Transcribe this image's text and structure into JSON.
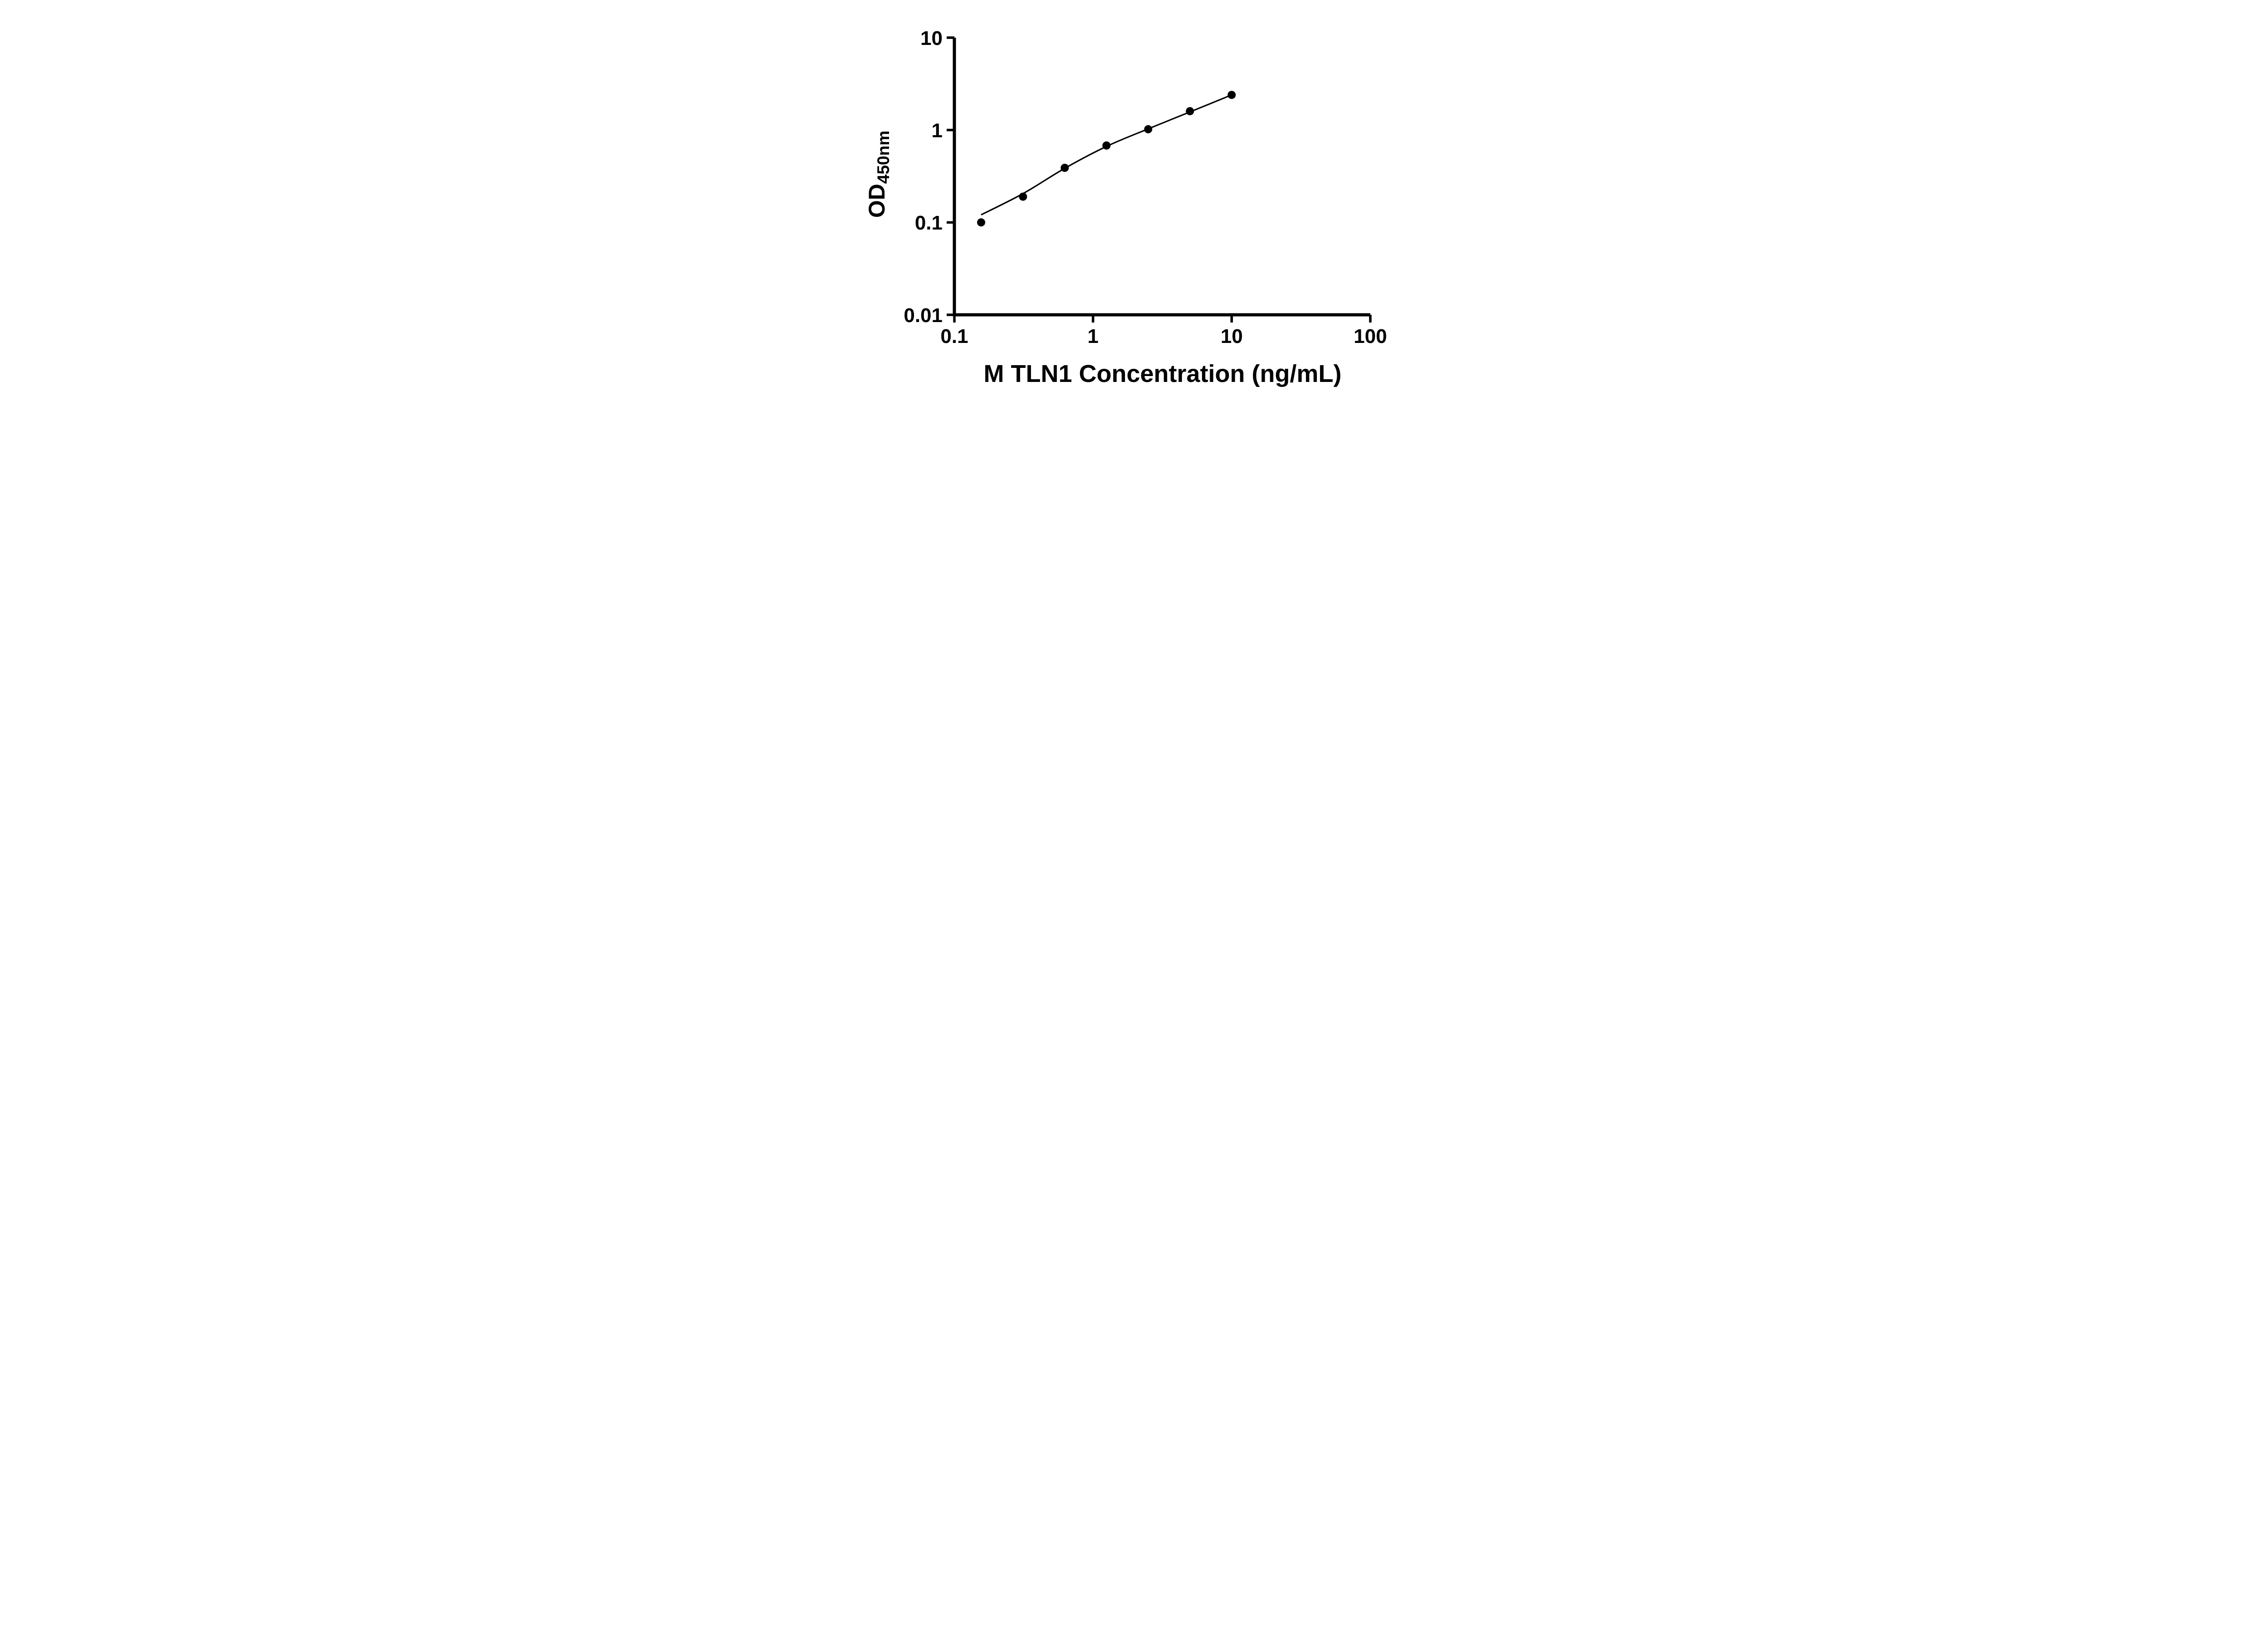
{
  "figure": {
    "background": "#ffffff"
  },
  "chart_data": {
    "type": "scatter",
    "title": "",
    "xlabel": "M TLN1 Concentration (ng/mL)",
    "ylabel_main": "OD",
    "ylabel_sub": "450nm",
    "x_scale": "log10",
    "y_scale": "log10",
    "xlim": [
      0.1,
      100
    ],
    "ylim": [
      0.01,
      10
    ],
    "grid": false,
    "legend": false,
    "axis_color": "#000000",
    "line_color": "#000000",
    "marker_color": "#000000",
    "x_ticks": [
      {
        "value": 0.1,
        "label": "0.1"
      },
      {
        "value": 1,
        "label": "1"
      },
      {
        "value": 10,
        "label": "10"
      },
      {
        "value": 100,
        "label": "100"
      }
    ],
    "y_ticks": [
      {
        "value": 10,
        "label": "10"
      },
      {
        "value": 1,
        "label": "1"
      },
      {
        "value": 0.1,
        "label": "0.1"
      },
      {
        "value": 0.01,
        "label": "0.01"
      }
    ],
    "points": [
      {
        "x": 0.156,
        "y": 0.1
      },
      {
        "x": 0.3125,
        "y": 0.19
      },
      {
        "x": 0.625,
        "y": 0.39
      },
      {
        "x": 1.25,
        "y": 0.68
      },
      {
        "x": 2.5,
        "y": 1.02
      },
      {
        "x": 5,
        "y": 1.6
      },
      {
        "x": 10,
        "y": 2.4
      }
    ],
    "curve_points": [
      {
        "x": 0.156,
        "y": 0.121
      },
      {
        "x": 0.3125,
        "y": 0.205
      },
      {
        "x": 0.625,
        "y": 0.385
      },
      {
        "x": 1.25,
        "y": 0.665
      },
      {
        "x": 2.5,
        "y": 1.03
      },
      {
        "x": 5,
        "y": 1.57
      },
      {
        "x": 10,
        "y": 2.4
      }
    ]
  }
}
